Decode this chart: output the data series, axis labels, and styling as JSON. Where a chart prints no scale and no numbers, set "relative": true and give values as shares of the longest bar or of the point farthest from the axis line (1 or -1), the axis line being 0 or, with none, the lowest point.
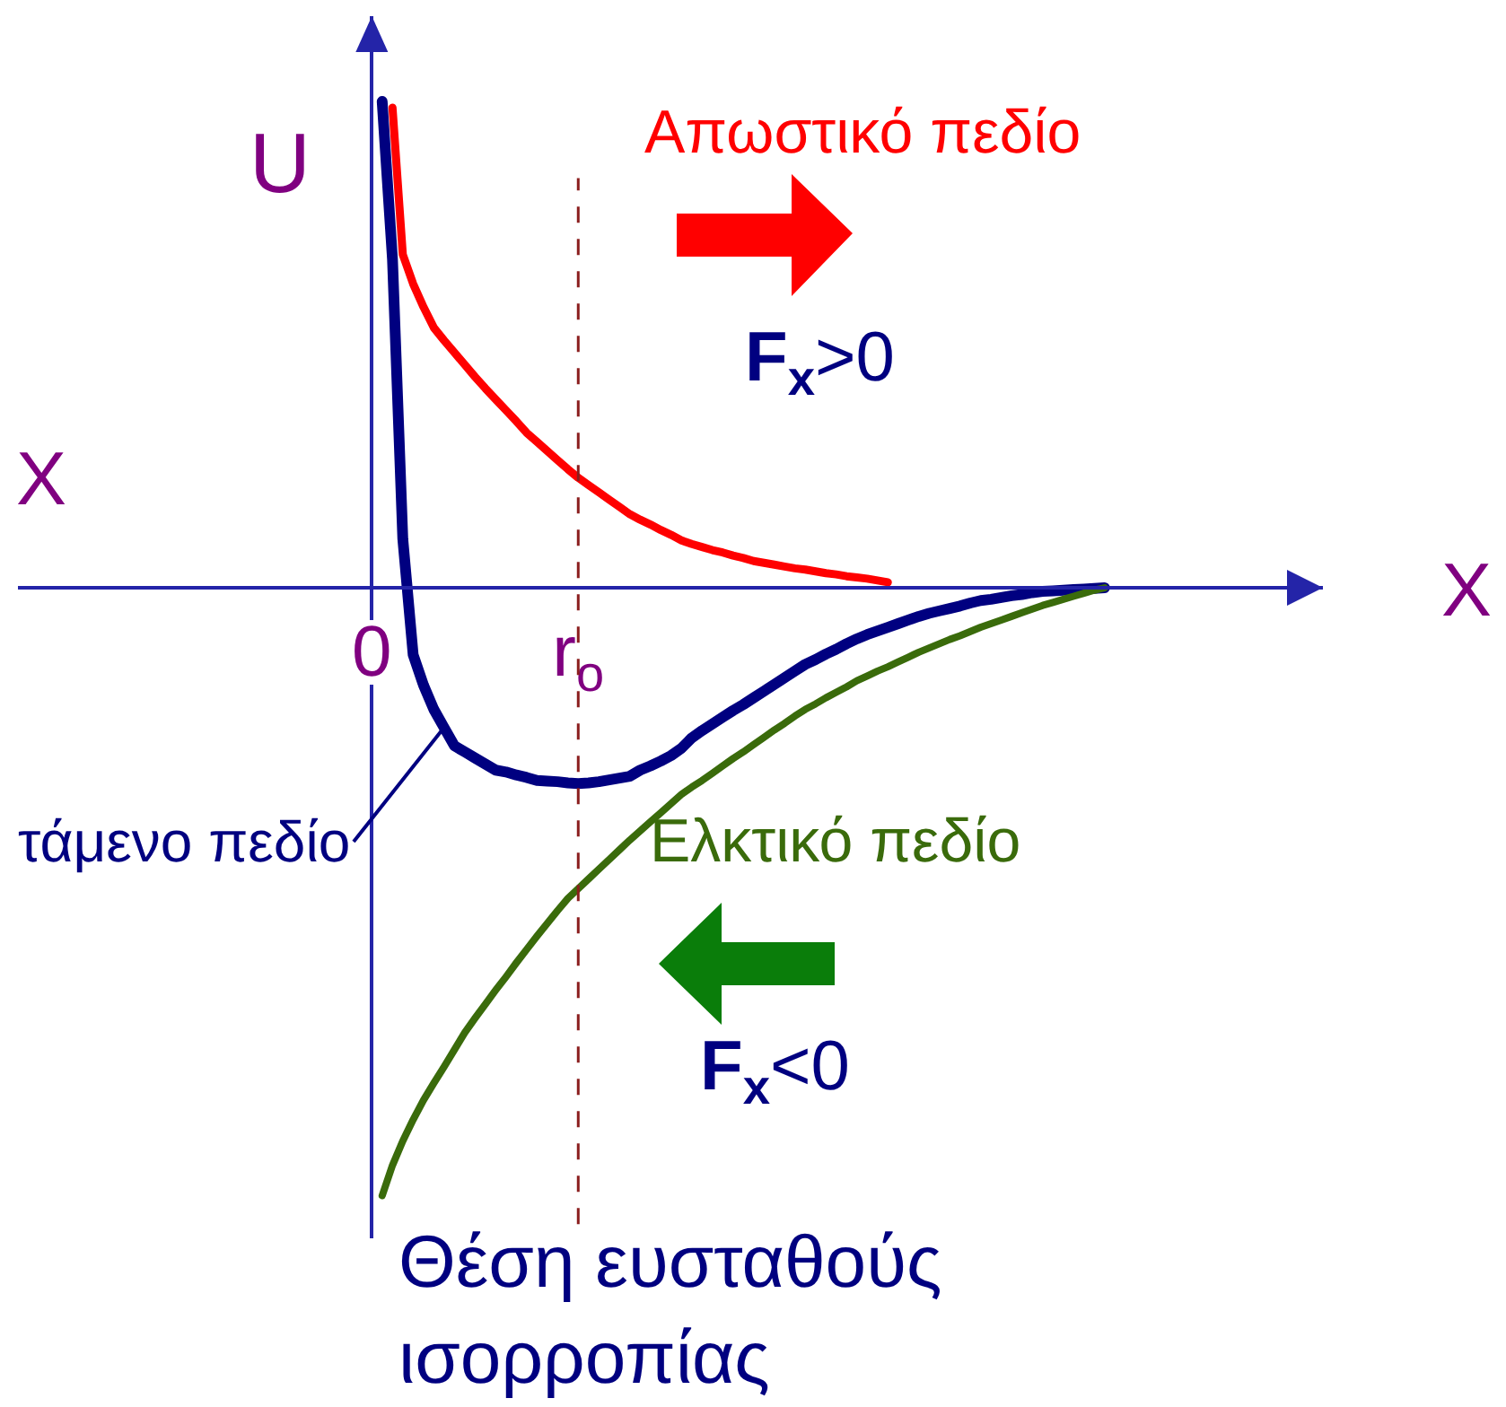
{
  "chart_data": {
    "type": "line",
    "relative": true,
    "xlabel": "X",
    "ylabel": "U",
    "tick_labels": "x",
    "categories": [
      "0",
      null,
      null,
      null,
      null,
      null,
      null,
      null,
      null,
      null,
      null,
      null,
      null,
      null,
      null,
      null,
      null,
      null,
      null,
      null,
      "r$_{o}$",
      null,
      null,
      null,
      null,
      null,
      null,
      null,
      null,
      null,
      null,
      null,
      null,
      null,
      null,
      null,
      null,
      null,
      null,
      null,
      null,
      null,
      null,
      null,
      null,
      null,
      null,
      null,
      null,
      null,
      null,
      null,
      null,
      null,
      null,
      null,
      null,
      null,
      null,
      null,
      null,
      null,
      null,
      null,
      null,
      null,
      null,
      null,
      null,
      null,
      null,
      null
    ],
    "series": [
      {
        "name": "τάμενο πεδίο",
        "color": "#000080",
        "values": [
          null,
          0.8,
          0.54,
          0.08,
          -0.11,
          -0.16,
          -0.2,
          -0.23,
          -0.26,
          -0.27,
          -0.28,
          -0.29,
          -0.3,
          -0.303,
          -0.308,
          -0.312,
          -0.317,
          -0.318,
          -0.319,
          -0.321,
          -0.322,
          -0.321,
          -0.319,
          -0.316,
          -0.313,
          -0.31,
          -0.3,
          -0.293,
          -0.285,
          -0.276,
          -0.264,
          -0.247,
          -0.235,
          -0.224,
          -0.213,
          -0.202,
          -0.192,
          -0.181,
          -0.17,
          -0.159,
          -0.148,
          -0.137,
          -0.126,
          -0.118,
          -0.109,
          -0.101,
          -0.092,
          -0.084,
          -0.077,
          -0.071,
          -0.065,
          -0.059,
          -0.053,
          -0.047,
          -0.042,
          -0.038,
          -0.034,
          -0.03,
          -0.025,
          -0.021,
          -0.019,
          -0.016,
          -0.013,
          -0.011,
          -0.008,
          -0.006,
          -0.005,
          -0.004,
          -0.003,
          -0.002,
          -0.001,
          0.0
        ]
      },
      {
        "name": "Ελκτικό πεδίο",
        "color": "#3a6b0b",
        "values": [
          null,
          -1.0,
          -0.95,
          -0.91,
          -0.875,
          -0.843,
          -0.815,
          -0.788,
          -0.76,
          -0.732,
          -0.708,
          -0.685,
          -0.662,
          -0.64,
          -0.617,
          -0.595,
          -0.573,
          -0.552,
          -0.531,
          -0.511,
          -0.495,
          -0.479,
          -0.463,
          -0.447,
          -0.431,
          -0.415,
          -0.4,
          -0.385,
          -0.37,
          -0.355,
          -0.34,
          -0.328,
          -0.317,
          -0.305,
          -0.293,
          -0.281,
          -0.27,
          -0.258,
          -0.246,
          -0.234,
          -0.223,
          -0.211,
          -0.2,
          -0.191,
          -0.181,
          -0.172,
          -0.163,
          -0.153,
          -0.145,
          -0.137,
          -0.13,
          -0.122,
          -0.114,
          -0.106,
          -0.099,
          -0.092,
          -0.085,
          -0.079,
          -0.072,
          -0.065,
          -0.059,
          -0.053,
          -0.047,
          -0.041,
          -0.035,
          -0.029,
          -0.024,
          -0.019,
          -0.014,
          -0.009,
          -0.004,
          0.0
        ]
      },
      {
        "name": "Απωστικό πεδίο",
        "color": "#ff0000",
        "values": [
          null,
          null,
          0.79,
          0.548,
          0.5,
          0.462,
          0.428,
          0.407,
          0.387,
          0.367,
          0.347,
          0.328,
          0.31,
          0.292,
          0.274,
          0.255,
          0.24,
          0.225,
          0.21,
          0.195,
          0.181,
          0.169,
          0.157,
          0.145,
          0.133,
          0.121,
          0.112,
          0.104,
          0.095,
          0.087,
          0.078,
          0.072,
          0.067,
          0.062,
          0.058,
          0.053,
          0.049,
          0.044,
          0.041,
          0.038,
          0.035,
          0.032,
          0.03,
          0.027,
          0.024,
          0.022,
          0.019,
          0.017,
          0.015,
          0.012,
          0.009,
          null,
          null,
          null,
          null,
          null,
          null,
          null,
          null,
          null,
          null,
          null,
          null,
          null,
          null,
          null,
          null,
          null,
          null,
          null,
          null,
          null
        ]
      }
    ],
    "ref_lines": [
      {
        "axis": "x",
        "value": "r$_{o}$",
        "label": "Θέση ευσταθούς ισορροπίας",
        "color": "#8b1e1e",
        "line_style": "dashed"
      }
    ],
    "annotations": [
      "X",
      "F$_{x}$>0",
      "F$_{x}$<0"
    ]
  }
}
